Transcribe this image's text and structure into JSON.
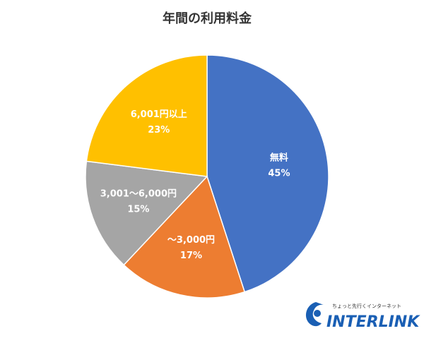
{
  "chart_data": {
    "type": "pie",
    "title": "年間の利用料金",
    "categories": [
      "無料",
      "～3,000円",
      "3,001～6,000円",
      "6,001円以上"
    ],
    "values": [
      45,
      17,
      15,
      23
    ],
    "value_labels": [
      "45%",
      "17%",
      "15%",
      "23%"
    ],
    "colors": [
      "#4472c4",
      "#ed7d31",
      "#a5a5a5",
      "#ffc000"
    ]
  },
  "logo": {
    "tagline": "ちょっと先行くインターネット",
    "name": "INTERLINK"
  }
}
